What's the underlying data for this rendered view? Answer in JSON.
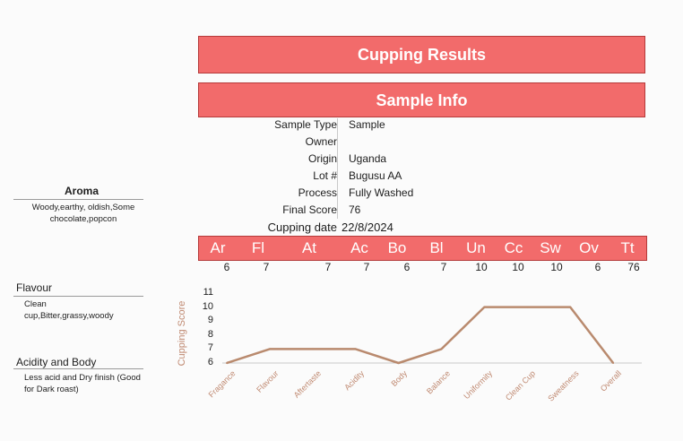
{
  "header": {
    "title": "Cupping Results",
    "section": "Sample Info"
  },
  "sample_info": {
    "rows": [
      {
        "label": "Sample Type",
        "value": "Sample"
      },
      {
        "label": "Owner",
        "value": ""
      },
      {
        "label": "Origin",
        "value": "Uganda"
      },
      {
        "label": "Lot #",
        "value": "Bugusu AA"
      },
      {
        "label": "Process",
        "value": "Fully Washed"
      },
      {
        "label": "Final Score",
        "value": "76"
      },
      {
        "label": "Cupping date",
        "value": "22/8/2024"
      }
    ]
  },
  "scores": {
    "abbreviations": [
      "Ar",
      "Fl",
      "At",
      "Ac",
      "Bo",
      "Bl",
      "Un",
      "Cc",
      "Sw",
      "Ov",
      "Tt"
    ],
    "values": [
      "6",
      "7",
      "7",
      "7",
      "6",
      "7",
      "10",
      "10",
      "10",
      "6",
      "76"
    ]
  },
  "notes": {
    "aroma": {
      "heading": "Aroma",
      "text": "Woody,earthy, oldish,Some chocolate,popcon"
    },
    "flavour": {
      "heading": "Flavour",
      "text": "Clean cup,Bitter,grassy,woody"
    },
    "acidity_body": {
      "heading": "Acidity and Body",
      "text": "Less acid and Dry finish (Good for Dark roast)"
    }
  },
  "chart_data": {
    "type": "line",
    "categories": [
      "Fragance",
      "Flavour",
      "Aftertaste",
      "Acidity",
      "Body",
      "Balance",
      "Uniformity",
      "Clean Cup",
      "Sweatness",
      "Overall"
    ],
    "series": [
      {
        "values": [
          6,
          7,
          7,
          7,
          6,
          7,
          10,
          10,
          10,
          6
        ],
        "color": "#b98a6e"
      }
    ],
    "ylabel": "Cupping Score",
    "xlabel": "",
    "ylim": [
      6,
      11
    ],
    "yticks": [
      6,
      7,
      8,
      9,
      10,
      11
    ],
    "grid": false
  }
}
